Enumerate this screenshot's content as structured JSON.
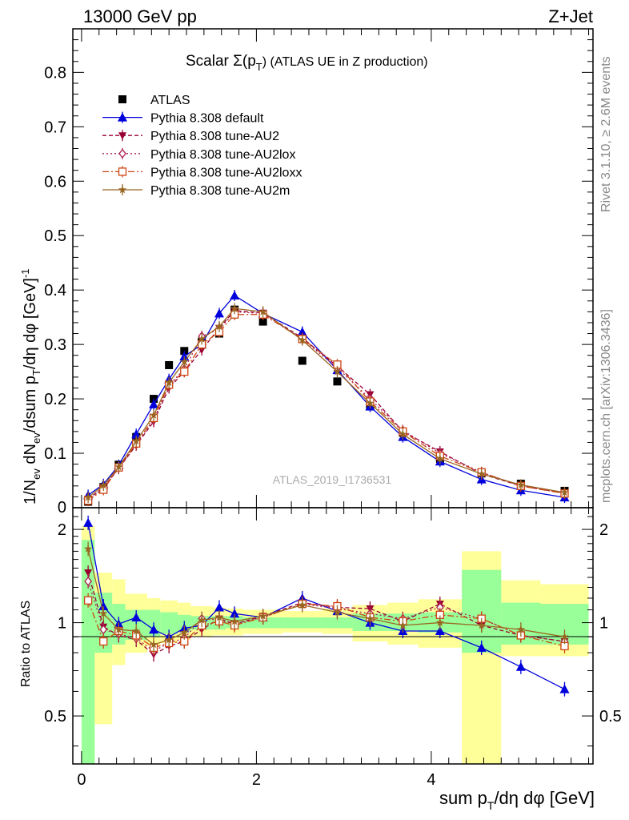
{
  "header": {
    "left": "13000 GeV pp",
    "right": "Z+Jet"
  },
  "side": {
    "rivet": "Rivet 3.1.10, ≥ 2.6M events",
    "mcplots": "mcplots.cern.ch [arXiv:1306.3436]"
  },
  "colors": {
    "atlas": "#000000",
    "default": "#0000dd",
    "au2": "#990033",
    "au2lox": "#aa2255",
    "au2loxx": "#cc4411",
    "au2m": "#996622",
    "band_green": "#99ff99",
    "band_yellow": "#ffff99"
  },
  "chart_data": [
    {
      "type": "scatter",
      "title": "Scalar Σ(p_T) (ATLAS UE in Z production)",
      "title_parts": {
        "main": "Scalar Σ(p",
        "sub": "T",
        "rest": ") (ATLAS UE in Z production)"
      },
      "ylabel": "1/N_ev dN_ev/dsum p_T/dη dφ [GeV]^-1",
      "ylabel_parts": {
        "a": "1/N",
        "ev": "ev",
        "b": " dN",
        "c": "/dsum p",
        "T": "T",
        "d": "/dη dφ  [GeV]",
        "sup": "-1"
      },
      "watermark": "ATLAS_2019_I1736531",
      "xlim": [
        -0.1,
        5.85
      ],
      "ylim": [
        0,
        0.88
      ],
      "yticks": [
        0.1,
        0.2,
        0.3,
        0.4,
        0.5,
        0.6,
        0.7,
        0.8
      ],
      "ytick_labels": [
        "0.1",
        "0.2",
        "0.3",
        "0.4",
        "0.5",
        "0.6",
        "0.7",
        "0.8"
      ],
      "ytick_zero_label": "0",
      "legend_position": "top-left",
      "legend": [
        "ATLAS",
        "Pythia 8.308 default",
        "Pythia 8.308 tune-AU2",
        "Pythia 8.308 tune-AU2lox",
        "Pythia 8.308 tune-AU2loxx",
        "Pythia 8.308 tune-AU2m"
      ],
      "x": [
        0.075,
        0.25,
        0.425,
        0.625,
        0.825,
        1.0,
        1.175,
        1.375,
        1.575,
        1.75,
        2.075,
        2.525,
        2.925,
        3.3,
        3.675,
        4.1,
        4.575,
        5.025,
        5.525
      ],
      "series": [
        {
          "name": "ATLAS",
          "key": "atlas",
          "marker": "square",
          "values": [
            0.011,
            0.038,
            0.079,
            0.13,
            0.2,
            0.262,
            0.288,
            0.305,
            0.32,
            0.364,
            0.342,
            0.27,
            0.232,
            0.187,
            0.138,
            0.09,
            0.063,
            0.044,
            0.031
          ]
        },
        {
          "name": "Pythia 8.308 default",
          "key": "default",
          "marker": "triangle-up",
          "values": [
            0.023,
            0.043,
            0.078,
            0.135,
            0.19,
            0.236,
            0.278,
            0.3,
            0.357,
            0.39,
            0.357,
            0.323,
            0.253,
            0.186,
            0.13,
            0.085,
            0.052,
            0.032,
            0.019
          ]
        },
        {
          "name": "Pythia 8.308 tune-AU2",
          "key": "au2",
          "marker": "triangle-down",
          "values": [
            0.016,
            0.037,
            0.072,
            0.115,
            0.158,
            0.22,
            0.25,
            0.29,
            0.33,
            0.362,
            0.358,
            0.312,
            0.26,
            0.208,
            0.14,
            0.103,
            0.062,
            0.04,
            0.027
          ]
        },
        {
          "name": "Pythia 8.308 tune-AU2lox",
          "key": "au2lox",
          "marker": "diamond",
          "values": [
            0.015,
            0.036,
            0.073,
            0.116,
            0.162,
            0.225,
            0.255,
            0.315,
            0.328,
            0.36,
            0.357,
            0.31,
            0.257,
            0.2,
            0.142,
            0.1,
            0.065,
            0.04,
            0.027
          ]
        },
        {
          "name": "Pythia 8.308 tune-AU2loxx",
          "key": "au2loxx",
          "marker": "open-square",
          "values": [
            0.013,
            0.033,
            0.074,
            0.118,
            0.165,
            0.226,
            0.25,
            0.3,
            0.323,
            0.355,
            0.355,
            0.31,
            0.263,
            0.195,
            0.14,
            0.095,
            0.065,
            0.04,
            0.026
          ]
        },
        {
          "name": "Pythia 8.308 tune-AU2m",
          "key": "au2m",
          "marker": "star",
          "values": [
            0.019,
            0.041,
            0.075,
            0.122,
            0.17,
            0.23,
            0.268,
            0.31,
            0.333,
            0.366,
            0.36,
            0.308,
            0.25,
            0.192,
            0.135,
            0.09,
            0.062,
            0.042,
            0.028
          ]
        }
      ]
    },
    {
      "type": "scatter",
      "ylabel": "Ratio to ATLAS",
      "xlabel": "sum p_T/dη dφ [GeV]",
      "xlabel_parts": {
        "a": "sum p",
        "T": "T",
        "b": "/dη dφ [GeV]"
      },
      "xlim": [
        -0.1,
        5.85
      ],
      "ylim": [
        0.35,
        2.35
      ],
      "yscale": "log",
      "yticks": [
        0.5,
        1,
        2
      ],
      "ytick_labels": [
        "0.5",
        "1",
        "2"
      ],
      "xticks": [
        0,
        2,
        4
      ],
      "xtick_labels": [
        "0",
        "2",
        "4"
      ],
      "bin_edges": [
        0.0,
        0.15,
        0.35,
        0.5,
        0.75,
        0.9,
        1.1,
        1.25,
        1.5,
        1.65,
        1.85,
        2.3,
        2.75,
        3.1,
        3.5,
        3.85,
        4.35,
        4.8,
        5.25,
        5.8
      ],
      "band_green": [
        [
          0.34,
          1.85
        ],
        [
          0.8,
          1.25
        ],
        [
          0.85,
          1.15
        ],
        [
          0.88,
          1.1
        ],
        [
          0.9,
          1.1
        ],
        [
          0.92,
          1.08
        ],
        [
          0.94,
          1.06
        ],
        [
          0.95,
          1.05
        ],
        [
          0.95,
          1.05
        ],
        [
          0.96,
          1.05
        ],
        [
          0.96,
          1.04
        ],
        [
          0.96,
          1.04
        ],
        [
          0.96,
          1.04
        ],
        [
          0.94,
          1.07
        ],
        [
          0.94,
          1.07
        ],
        [
          0.93,
          1.08
        ],
        [
          0.8,
          1.48
        ],
        [
          0.85,
          1.16
        ],
        [
          0.85,
          1.15
        ]
      ],
      "band_yellow": [
        [
          0.34,
          2.05
        ],
        [
          0.47,
          1.45
        ],
        [
          0.73,
          1.38
        ],
        [
          0.8,
          1.24
        ],
        [
          0.84,
          1.2
        ],
        [
          0.86,
          1.18
        ],
        [
          0.88,
          1.16
        ],
        [
          0.9,
          1.13
        ],
        [
          0.91,
          1.12
        ],
        [
          0.91,
          1.11
        ],
        [
          0.92,
          1.1
        ],
        [
          0.93,
          1.09
        ],
        [
          0.92,
          1.11
        ],
        [
          0.87,
          1.14
        ],
        [
          0.85,
          1.16
        ],
        [
          0.83,
          1.19
        ],
        [
          0.34,
          1.7
        ],
        [
          0.78,
          1.37
        ],
        [
          0.78,
          1.33
        ]
      ],
      "series": [
        {
          "name": "Pythia 8.308 default",
          "key": "default",
          "marker": "triangle-up",
          "values": [
            2.1,
            1.13,
            0.99,
            1.04,
            0.95,
            0.9,
            0.96,
            0.98,
            1.12,
            1.07,
            1.04,
            1.2,
            1.09,
            1.0,
            0.94,
            0.94,
            0.83,
            0.72,
            0.61
          ]
        },
        {
          "name": "Pythia 8.308 tune-AU2",
          "key": "au2",
          "marker": "triangle-down",
          "values": [
            1.45,
            0.97,
            0.91,
            0.88,
            0.79,
            0.84,
            0.87,
            0.95,
            1.03,
            0.99,
            1.05,
            1.16,
            1.12,
            1.11,
            1.01,
            1.15,
            0.98,
            0.91,
            0.87
          ]
        },
        {
          "name": "Pythia 8.308 tune-AU2lox",
          "key": "au2lox",
          "marker": "diamond",
          "values": [
            1.36,
            0.95,
            0.92,
            0.89,
            0.81,
            0.86,
            0.89,
            1.03,
            1.02,
            0.99,
            1.04,
            1.15,
            1.11,
            1.07,
            1.03,
            1.12,
            1.03,
            0.91,
            0.87
          ]
        },
        {
          "name": "Pythia 8.308 tune-AU2loxx",
          "key": "au2loxx",
          "marker": "open-square",
          "values": [
            1.18,
            0.87,
            0.94,
            0.91,
            0.83,
            0.86,
            0.87,
            0.98,
            1.01,
            0.98,
            1.04,
            1.15,
            1.13,
            1.04,
            1.01,
            1.06,
            1.03,
            0.91,
            0.84
          ]
        },
        {
          "name": "Pythia 8.308 tune-AU2m",
          "key": "au2m",
          "marker": "star",
          "values": [
            1.73,
            1.07,
            0.95,
            0.94,
            0.85,
            0.88,
            0.93,
            1.02,
            1.04,
            1.01,
            1.05,
            1.14,
            1.08,
            1.03,
            0.98,
            1.0,
            0.98,
            0.95,
            0.9
          ]
        }
      ]
    }
  ]
}
